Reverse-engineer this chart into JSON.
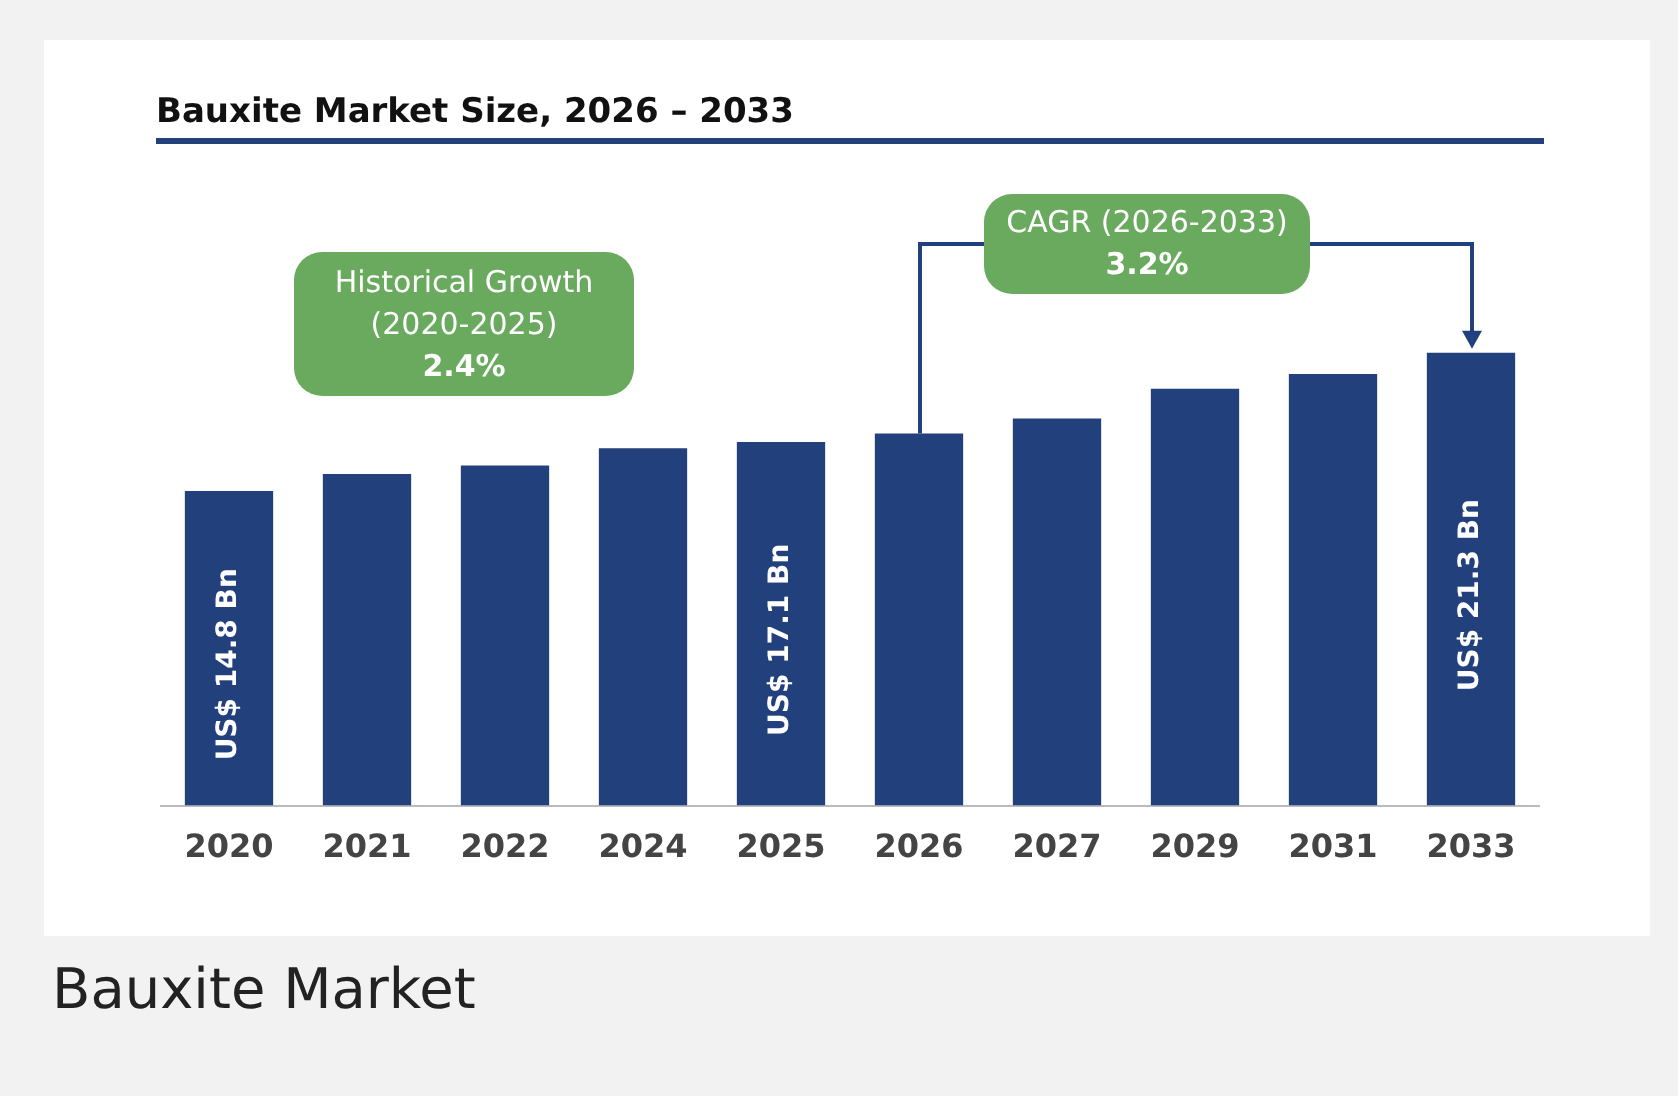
{
  "chart_data": {
    "type": "bar",
    "title": "Bauxite Market Size, 2026 – 2033",
    "categories": [
      "2020",
      "2021",
      "2022",
      "2024",
      "2025",
      "2026",
      "2027",
      "2029",
      "2031",
      "2033"
    ],
    "values": [
      14.8,
      15.6,
      16.0,
      16.8,
      17.1,
      17.5,
      18.2,
      19.6,
      20.3,
      21.3
    ],
    "value_labels": [
      "US$ 14.8 Bn",
      null,
      null,
      null,
      "US$ 17.1 Bn",
      null,
      null,
      null,
      null,
      "US$ 21.3 Bn"
    ],
    "color": "#22407c",
    "tick_labels": "x",
    "grid": false,
    "annotations": [
      "Historical Growth\n(2020-2025)\n2.4%",
      "CAGR (2026-2033)\n3.2%",
      "Bauxite Market"
    ]
  }
}
